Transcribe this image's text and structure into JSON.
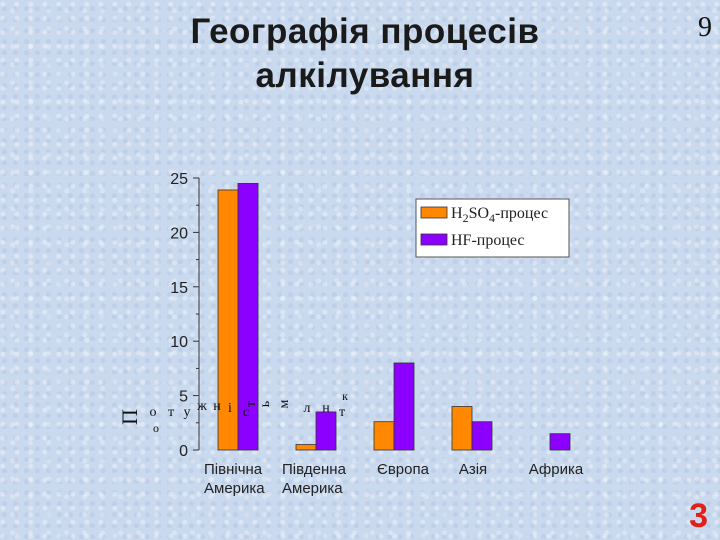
{
  "slide": {
    "title_line1": "Географія процесів",
    "title_line2": "алкілування",
    "page_number": "9",
    "corner_number": "3",
    "vertical_label_letters": [
      "П",
      "о",
      "т",
      "у",
      "ж",
      "н",
      "і",
      "с",
      "т",
      "ь",
      "м",
      "л",
      "н",
      "т",
      "о",
      "к"
    ]
  },
  "chart_data": {
    "type": "bar",
    "categories": [
      "Північна Америка",
      "Південна Америка",
      "Європа",
      "Азія",
      "Африка"
    ],
    "category_lines": [
      [
        "Північна",
        "Америка"
      ],
      [
        "Південна",
        "Америка"
      ],
      [
        "Європа"
      ],
      [
        "Азія"
      ],
      [
        "Африка"
      ]
    ],
    "series": [
      {
        "name": "H2SO4-процес",
        "color": "#ff8800",
        "values": [
          23.9,
          0.5,
          2.6,
          4.0,
          0
        ]
      },
      {
        "name": "HF-процес",
        "color": "#8c00ff",
        "values": [
          24.5,
          3.5,
          8.0,
          2.6,
          1.5
        ]
      }
    ],
    "legend": {
      "position": "top-right",
      "h2so4_parts": [
        "H",
        "2",
        "SO",
        "4",
        "-процес"
      ],
      "hf_label": "HF-процес"
    },
    "ylim": [
      0,
      25
    ],
    "yticks": [
      0,
      5,
      10,
      15,
      20,
      25
    ],
    "xlabel": "",
    "grid": false
  }
}
